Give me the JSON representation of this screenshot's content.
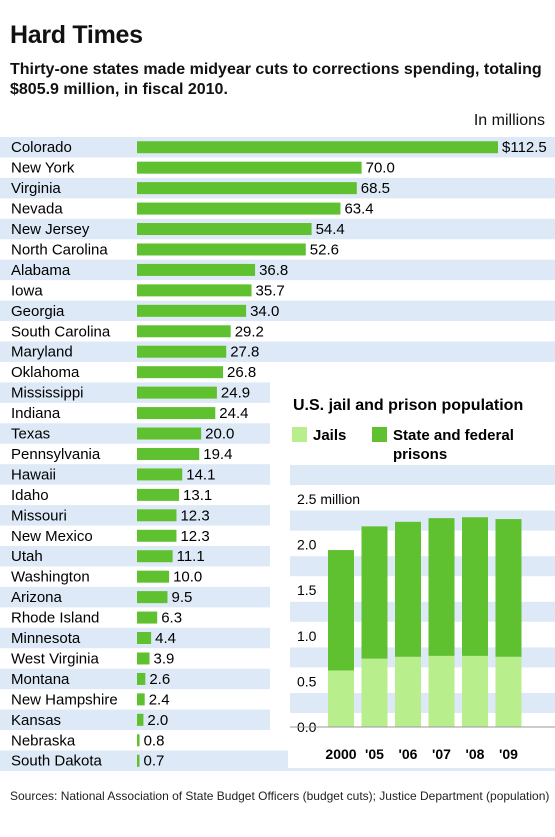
{
  "header": {
    "title": "Hard Times",
    "subtitle": "Thirty-one states made midyear cuts to corrections spending, totaling $805.9 million, in fiscal 2010.",
    "unit": "In millions"
  },
  "chart_data": [
    {
      "type": "bar",
      "orientation": "horizontal",
      "unit_label": "In millions",
      "categories": [
        "Colorado",
        "New York",
        "Virginia",
        "Nevada",
        "New Jersey",
        "North Carolina",
        "Alabama",
        "Iowa",
        "Georgia",
        "South Carolina",
        "Maryland",
        "Oklahoma",
        "Mississippi",
        "Indiana",
        "Texas",
        "Pennsylvania",
        "Hawaii",
        "Idaho",
        "Missouri",
        "New Mexico",
        "Utah",
        "Washington",
        "Arizona",
        "Rhode Island",
        "Minnesota",
        "West Virginia",
        "Montana",
        "New Hampshire",
        "Kansas",
        "Nebraska",
        "South Dakota"
      ],
      "values": [
        112.5,
        70.0,
        68.5,
        63.4,
        54.4,
        52.6,
        36.8,
        35.7,
        34.0,
        29.2,
        27.8,
        26.8,
        24.9,
        24.4,
        20.0,
        19.4,
        14.1,
        13.1,
        12.3,
        12.3,
        11.1,
        10.0,
        9.5,
        6.3,
        4.4,
        3.9,
        2.6,
        2.4,
        2.0,
        0.8,
        0.7
      ],
      "value_labels": [
        "$112.5",
        "70.0",
        "68.5",
        "63.4",
        "54.4",
        "52.6",
        "36.8",
        "35.7",
        "34.0",
        "29.2",
        "27.8",
        "26.8",
        "24.9",
        "24.4",
        "20.0",
        "19.4",
        "14.1",
        "13.1",
        "12.3",
        "12.3",
        "11.1",
        "10.0",
        "9.5",
        "6.3",
        "4.4",
        "3.9",
        "2.6",
        "2.4",
        "2.0",
        "0.8",
        "0.7"
      ],
      "colors": {
        "bar": "#5fc12f",
        "stripe": "#dde9f6"
      }
    },
    {
      "type": "bar",
      "stacked": true,
      "title": "U.S. jail and prison population",
      "categories": [
        "2000",
        "'05",
        "'06",
        "'07",
        "'08",
        "'09"
      ],
      "series": [
        {
          "name": "Jails",
          "values": [
            0.62,
            0.75,
            0.77,
            0.78,
            0.78,
            0.77
          ],
          "color": "#b9ee8c"
        },
        {
          "name": "State and federal prisons",
          "values": [
            1.32,
            1.45,
            1.48,
            1.51,
            1.52,
            1.51
          ],
          "color": "#5fc12f"
        }
      ],
      "ylim": [
        0,
        2.5
      ],
      "yticks": [
        0,
        0.5,
        1.0,
        1.5,
        2.0,
        2.5
      ],
      "ytick_labels": [
        "0.0",
        "0.5",
        "1.0",
        "1.5",
        "2.0",
        "2.5 million"
      ],
      "grid": true,
      "legend_position": "top"
    }
  ],
  "footer": {
    "sources": "Sources: National Association of State Budget Officers (budget cuts); Justice Department (population)"
  }
}
